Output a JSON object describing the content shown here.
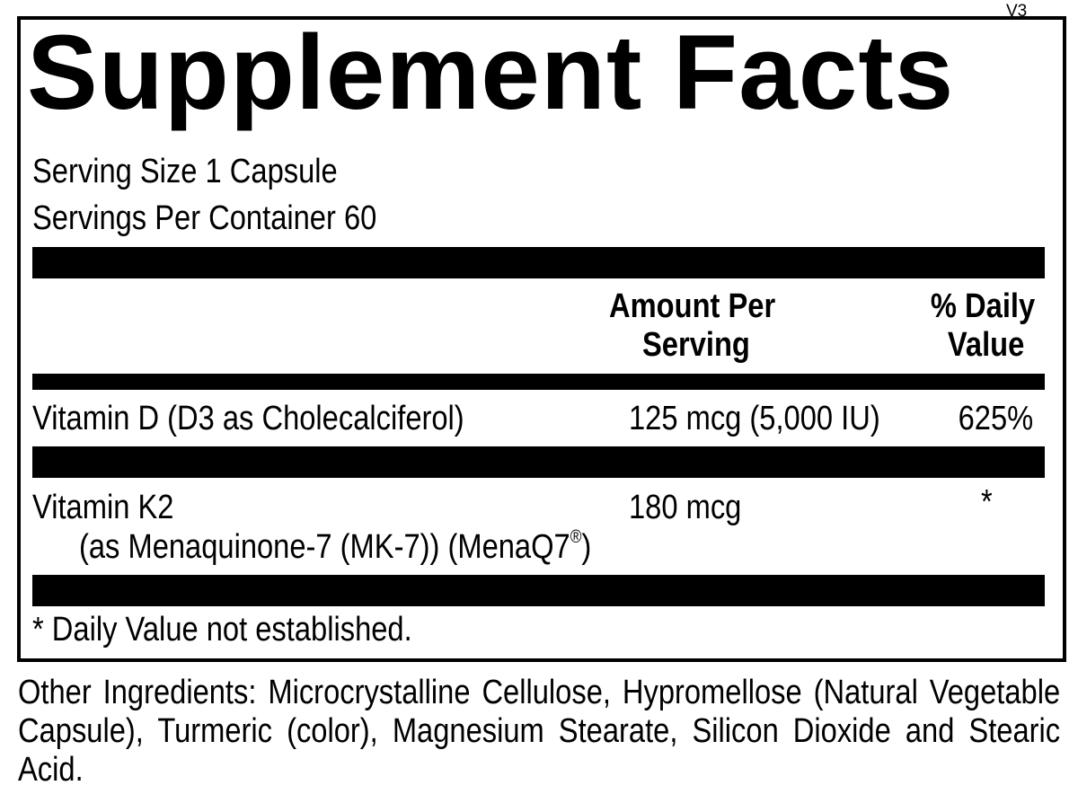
{
  "label": {
    "version": "V3",
    "title": "Supplement Facts",
    "serving_size": "Serving Size 1 Capsule",
    "servings_per_container": "Servings Per Container 60",
    "header": {
      "amount_line1": "Amount Per",
      "amount_line2": "Serving",
      "dv_line1": "% Daily",
      "dv_line2": "Value"
    },
    "rows": [
      {
        "name": "Vitamin D (D3 as Cholecalciferol)",
        "amount": "125 mcg (5,000 IU)",
        "dv": "625%"
      },
      {
        "name": "Vitamin K2",
        "sub": "(as Menaquinone-7 (MK-7)) (MenaQ7",
        "sub_mark": "®",
        "sub_end": ")",
        "amount": "180 mcg",
        "dv": "*"
      }
    ],
    "footnote": "* Daily Value not established.",
    "other_ingredients": "Other Ingredients: Microcrystalline Cellulose, Hypromellose (Natural Vegeta­ble Capsule), Turmeric (color), Magnesium Stearate, Silicon Dioxide and Stearic Acid."
  }
}
